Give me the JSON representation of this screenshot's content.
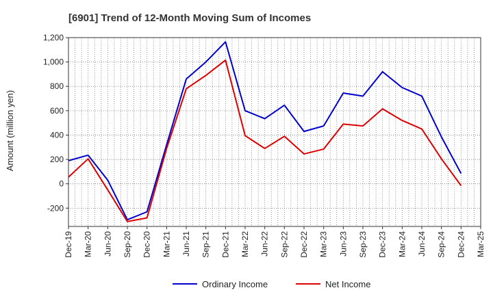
{
  "chart_data": {
    "type": "line",
    "title": "[6901]  Trend of 12-Month Moving Sum of Incomes",
    "xlabel": "",
    "ylabel": "Amount (million yen)",
    "ylim": [
      -350,
      1200
    ],
    "yticks": [
      -200,
      0,
      200,
      400,
      600,
      800,
      1000,
      1200
    ],
    "ytick_labels": [
      "-200",
      "0",
      "200",
      "400",
      "600",
      "800",
      "1,000",
      "1,200"
    ],
    "categories": [
      "Dec-19",
      "Mar-20",
      "Jun-20",
      "Sep-20",
      "Dec-20",
      "Mar-21",
      "Jun-21",
      "Sep-21",
      "Dec-21",
      "Mar-22",
      "Jun-22",
      "Sep-22",
      "Dec-22",
      "Mar-23",
      "Jun-23",
      "Sep-23",
      "Dec-23",
      "Mar-24",
      "Jun-24",
      "Sep-24",
      "Dec-24",
      "Mar-25"
    ],
    "grid": true,
    "legend_position": "bottom-center",
    "series": [
      {
        "name": "Ordinary Income",
        "color": "#0000cc",
        "values": [
          190,
          235,
          30,
          -295,
          -230,
          320,
          860,
          1000,
          1165,
          600,
          535,
          645,
          430,
          475,
          745,
          720,
          920,
          790,
          720,
          385,
          85,
          null
        ]
      },
      {
        "name": "Net Income",
        "color": "#dd0000",
        "values": [
          55,
          205,
          -50,
          -310,
          -280,
          290,
          780,
          890,
          1015,
          395,
          290,
          390,
          245,
          285,
          490,
          475,
          615,
          520,
          450,
          205,
          -15,
          null
        ]
      }
    ]
  }
}
